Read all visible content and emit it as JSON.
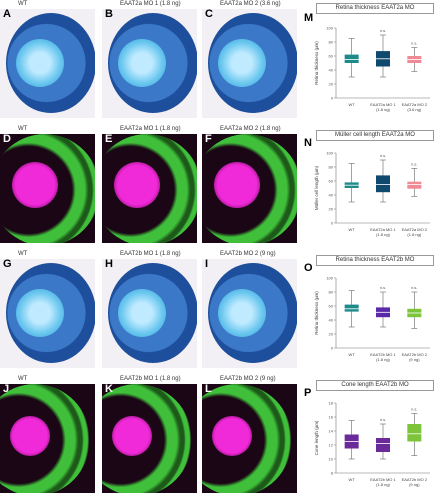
{
  "rows": [
    {
      "id": "row1",
      "type": "histo",
      "panels": [
        {
          "letter": "A",
          "title": "WT"
        },
        {
          "letter": "B",
          "title": "EAAT2a MO 1 (1.8 ng)"
        },
        {
          "letter": "C",
          "title": "EAAT2a MO 2 (3.6 ng)"
        }
      ]
    },
    {
      "id": "row2",
      "type": "fluor",
      "panels": [
        {
          "letter": "D",
          "title": "WT"
        },
        {
          "letter": "E",
          "title": "EAAT2a MO 1 (1.8 ng)"
        },
        {
          "letter": "F",
          "title": "EAAT2a MO 2 (1.8 ng)"
        }
      ]
    },
    {
      "id": "row3",
      "type": "histo",
      "panels": [
        {
          "letter": "G",
          "title": "WT"
        },
        {
          "letter": "H",
          "title": "EAAT2b MO 1 (1.8 ng)"
        },
        {
          "letter": "I",
          "title": "EAAT2b MO 2 (9 ng)"
        }
      ]
    },
    {
      "id": "row4",
      "type": "fluor2",
      "panels": [
        {
          "letter": "J",
          "title": "WT"
        },
        {
          "letter": "K",
          "title": "EAAT2b MO 1 (1.8 ng)"
        },
        {
          "letter": "L",
          "title": "EAAT2b MO 2 (9 ng)"
        }
      ]
    }
  ],
  "colors": {
    "histo_bg": "#f2f0f4",
    "histo_outer": "#1e4f9c",
    "histo_mid": "#3b78c8",
    "histo_lens": "#6cc8ef",
    "fluor_bg": "#1a0614",
    "fluor_green": "#3fbf3a",
    "fluor_magenta": "#f02ad8",
    "wt": "#1f8a8a",
    "mo1_2a": "#0f4a6e",
    "mo2_2a": "#f08a94",
    "mo1_2b": "#5a2aa8",
    "mo2_2b": "#7cc43a",
    "wt_cone": "#6a2a9a"
  },
  "chart_data": [
    {
      "letter": "M",
      "type": "box",
      "title": "Retina thickness EAAT2a MO",
      "ylabel": "Retina thickness (µm)",
      "ylim": [
        0,
        100
      ],
      "categories": [
        "WT",
        "EAAT2a MO 1 (1.8 ng)",
        "EAAT2a MO 2 (3.6 ng)"
      ],
      "stats": [
        "",
        "n.s.",
        "n.s."
      ],
      "boxes": [
        {
          "min": 30,
          "q1": 50,
          "median": 55,
          "q3": 62,
          "max": 85
        },
        {
          "min": 30,
          "q1": 45,
          "median": 56,
          "q3": 67,
          "max": 90
        },
        {
          "min": 38,
          "q1": 50,
          "median": 55,
          "q3": 60,
          "max": 72
        }
      ],
      "colors": [
        "#1f8a8a",
        "#0f4a6e",
        "#f08a94"
      ]
    },
    {
      "letter": "N",
      "type": "box",
      "title": "Müller cell length EAAT2a MO",
      "ylabel": "Müller cell length (µm)",
      "ylim": [
        0,
        100
      ],
      "categories": [
        "WT",
        "EAAT2a MO 1 (1.8 ng)",
        "EAAT2a MO 2 (1.8 ng)"
      ],
      "stats": [
        "",
        "n.s.",
        "n.s."
      ],
      "boxes": [
        {
          "min": 30,
          "q1": 50,
          "median": 54,
          "q3": 58,
          "max": 85
        },
        {
          "min": 30,
          "q1": 44,
          "median": 55,
          "q3": 68,
          "max": 90
        },
        {
          "min": 38,
          "q1": 49,
          "median": 55,
          "q3": 59,
          "max": 78
        }
      ],
      "colors": [
        "#1f8a8a",
        "#0f4a6e",
        "#f08a94"
      ]
    },
    {
      "letter": "O",
      "type": "box",
      "title": "Retina thickness EAAT2b MO",
      "ylabel": "Retina thickness (µm)",
      "ylim": [
        0,
        100
      ],
      "categories": [
        "WT",
        "EAAT2b MO 1 (1.8 ng)",
        "EAAT2b MO 2 (9 ng)"
      ],
      "stats": [
        "",
        "n.s.",
        "n.s."
      ],
      "boxes": [
        {
          "min": 30,
          "q1": 52,
          "median": 56,
          "q3": 62,
          "max": 82
        },
        {
          "min": 30,
          "q1": 44,
          "median": 51,
          "q3": 58,
          "max": 80
        },
        {
          "min": 28,
          "q1": 44,
          "median": 50,
          "q3": 56,
          "max": 80
        }
      ],
      "colors": [
        "#1f8a8a",
        "#5a2aa8",
        "#7cc43a"
      ]
    },
    {
      "letter": "P",
      "type": "box",
      "title": "Cone length EAAT2b MO",
      "ylabel": "Cone length (µm)",
      "ylim": [
        8,
        18
      ],
      "ticks": [
        8,
        10,
        12,
        14,
        16,
        18
      ],
      "categories": [
        "WT",
        "EAAT2b MO 1 (1.8 ng)",
        "EAAT2b MO 2 (9 ng)"
      ],
      "stats": [
        "",
        "n.s.",
        "n.s."
      ],
      "boxes": [
        {
          "min": 10,
          "q1": 11.5,
          "median": 12.5,
          "q3": 13.5,
          "max": 15.5
        },
        {
          "min": 10,
          "q1": 11,
          "median": 12.2,
          "q3": 13,
          "max": 15
        },
        {
          "min": 10.5,
          "q1": 12.5,
          "median": 13.6,
          "q3": 15,
          "max": 16.5
        }
      ],
      "colors": [
        "#6a2a9a",
        "#6a2a9a",
        "#7cc43a"
      ]
    }
  ]
}
